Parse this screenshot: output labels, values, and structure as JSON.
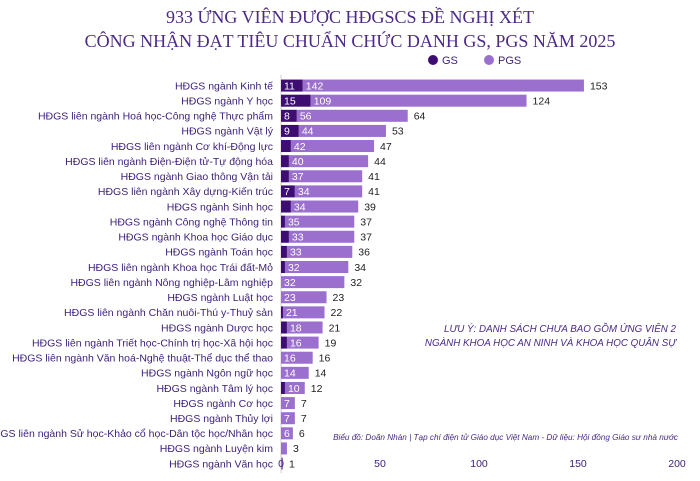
{
  "chart_data": {
    "type": "bar",
    "orientation": "horizontal",
    "stacked": true,
    "title": "933 ỨNG VIÊN ĐƯỢC HĐGSCS ĐỀ NGHỊ XÉT",
    "subtitle": "CÔNG NHẬN ĐẠT TIÊU CHUẨN CHỨC DANH GS, PGS NĂM 2025",
    "xlim": [
      0,
      200
    ],
    "xticks": [
      "0",
      "50",
      "100",
      "150",
      "200"
    ],
    "legend_position": "top-right",
    "categories": [
      "HĐGS ngành Kinh tế",
      "HĐGS ngành Y học",
      "HĐGS liên ngành Hoá học-Công nghệ Thực phẩm",
      "HĐGS ngành Vật lý",
      "HĐGS liên ngành Cơ khí-Động lực",
      "HĐGS liên ngành Điện-Điện tử-Tự động hóa",
      "HĐGS ngành Giao thông Vận tải",
      "HĐGS liên ngành Xây dựng-Kiến trúc",
      "HĐGS ngành Sinh học",
      "HĐGS ngành Công nghệ Thông tin",
      "HĐGS ngành Khoa học Giáo dục",
      "HĐGS ngành Toán học",
      "HĐGS liên ngành Khoa học Trái đất-Mỏ",
      "HĐGS liên ngành Nông nghiệp-Lâm nghiệp",
      "HĐGS ngành Luật học",
      "HĐGS liên ngành Chăn nuôi-Thú y-Thuỷ sản",
      "HĐGS ngành Dược học",
      "HĐGS liên ngành Triết học-Chính trị học-Xã hội học",
      "HĐGS liên ngành Văn hoá-Nghệ thuật-Thể dục thể thao",
      "HĐGS ngành Ngôn ngữ học",
      "HĐGS ngành Tâm lý học",
      "HĐGS ngành Cơ học",
      "HĐGS ngành Thủy lợi",
      "HĐGS liên ngành Sử học-Khảo cổ học-Dân tộc học/Nhân học",
      "HĐGS ngành Luyện kim",
      "HĐGS ngành Văn học"
    ],
    "series": [
      {
        "name": "GS",
        "color": "#3d0d72",
        "values": [
          11,
          15,
          8,
          9,
          5,
          4,
          4,
          7,
          5,
          2,
          4,
          3,
          2,
          0,
          0,
          1,
          3,
          3,
          0,
          0,
          2,
          0,
          0,
          0,
          0,
          0
        ],
        "labels": [
          "11",
          "15",
          "8",
          "9",
          "",
          "",
          "",
          "7",
          "",
          "",
          "",
          "",
          "",
          "",
          "",
          "",
          "",
          "",
          "",
          "",
          "",
          "",
          "",
          "",
          "",
          ""
        ]
      },
      {
        "name": "PGS",
        "color": "#9b6fce",
        "values": [
          142,
          109,
          56,
          44,
          42,
          40,
          37,
          34,
          34,
          35,
          33,
          33,
          32,
          32,
          23,
          21,
          18,
          16,
          16,
          14,
          10,
          7,
          7,
          6,
          3,
          1
        ],
        "labels": [
          "142",
          "109",
          "56",
          "44",
          "42",
          "40",
          "37",
          "34",
          "34",
          "35",
          "33",
          "33",
          "32",
          "32",
          "23",
          "21",
          "18",
          "16",
          "16",
          "14",
          "10",
          "7",
          "7",
          "6",
          "3",
          "1"
        ]
      }
    ],
    "totals": [
      153,
      124,
      64,
      53,
      47,
      44,
      41,
      41,
      39,
      37,
      37,
      36,
      34,
      32,
      23,
      22,
      21,
      19,
      16,
      14,
      12,
      7,
      7,
      6,
      3,
      1
    ],
    "annotation": [
      "LƯU Ý: DANH SÁCH CHƯA BAO GỒM ỨNG VIÊN 2",
      "NGÀNH KHOA HỌC AN NINH VÀ KHOA HỌC QUÂN SỰ"
    ],
    "source": "Biểu đồ: Doãn Nhàn | Tạp chí điện tử Giáo dục Việt Nam  -  Dữ liệu: Hội đồng Giáo sư nhà nước"
  }
}
